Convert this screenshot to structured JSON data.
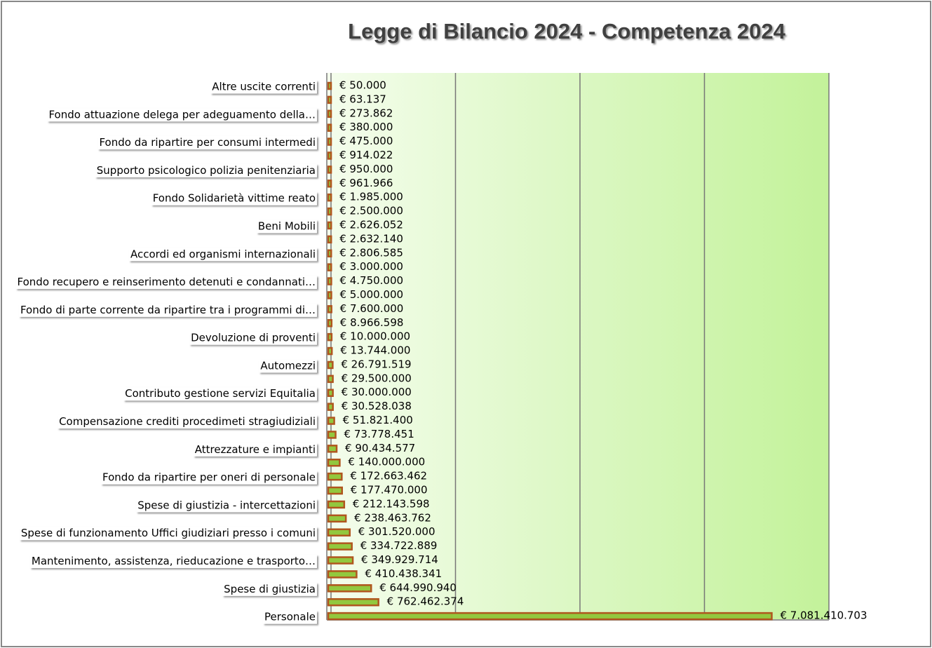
{
  "chart_data": {
    "type": "hbar",
    "title": "Legge di Bilancio 2024 - Competenza 2024",
    "categories": [
      "Altre uscite correnti",
      null,
      "Fondo attuazione delega per adeguamento della…",
      null,
      "Fondo da ripartire per consumi intermedi",
      null,
      "Supporto psicologico polizia penitenziaria",
      null,
      "Fondo Solidarietà vittime reato",
      null,
      "Beni Mobili",
      null,
      "Accordi ed organismi internazionali",
      null,
      "Fondo recupero e reinserimento detenuti e condannati…",
      null,
      "Fondo di parte corrente da ripartire tra i programmi di…",
      null,
      "Devoluzione di proventi",
      null,
      "Automezzi",
      null,
      "Contributo gestione servizi Equitalia",
      null,
      "Compensazione crediti procedimeti stragiudiziali",
      null,
      "Attrezzature e impianti",
      null,
      "Fondo da ripartire per oneri di personale",
      null,
      "Spese di giustizia - intercettazioni",
      null,
      "Spese di funzionamento Uffici giudiziari presso i comuni",
      null,
      "Mantenimento, assistenza, rieducazione e trasporto…",
      null,
      "Spese di giustizia",
      null,
      "Personale"
    ],
    "values": [
      50000,
      63137,
      273862,
      380000,
      475000,
      914022,
      950000,
      961966,
      1985000,
      2500000,
      2626052,
      2632140,
      2806585,
      3000000,
      4750000,
      5000000,
      7600000,
      8966598,
      10000000,
      13744000,
      26791519,
      29500000,
      30000000,
      30528038,
      51821400,
      73778451,
      90434577,
      140000000,
      172663462,
      177470000,
      212143598,
      238463762,
      301520000,
      334722889,
      349929714,
      410438341,
      644990940,
      762462374,
      7081410703
    ],
    "value_labels": [
      "€ 50.000",
      "€ 63.137",
      "€ 273.862",
      "€ 380.000",
      "€ 475.000",
      "€ 914.022",
      "€ 950.000",
      "€ 961.966",
      "€ 1.985.000",
      "€ 2.500.000",
      "€ 2.626.052",
      "€ 2.632.140",
      "€ 2.806.585",
      "€ 3.000.000",
      "€ 4.750.000",
      "€ 5.000.000",
      "€ 7.600.000",
      "€ 8.966.598",
      "€ 10.000.000",
      "€ 13.744.000",
      "€ 26.791.519",
      "€ 29.500.000",
      "€ 30.000.000",
      "€ 30.528.038",
      "€ 51.821.400",
      "€ 73.778.451",
      "€ 90.434.577",
      "€ 140.000.000",
      "€ 172.663.462",
      "€ 177.470.000",
      "€ 212.143.598",
      "€ 238.463.762",
      "€ 301.520.000",
      "€ 334.722.889",
      "€ 349.929.714",
      "€ 410.438.341",
      "€ 644.990.940",
      "€ 762.462.374",
      "€ 7.081.410.703"
    ],
    "color": "#92c83e",
    "edge_color": "#b0561e",
    "xlim": [
      0,
      8000000000
    ],
    "xgrid": [
      0,
      2000000000,
      4000000000,
      6000000000,
      8000000000
    ],
    "grid": true
  }
}
